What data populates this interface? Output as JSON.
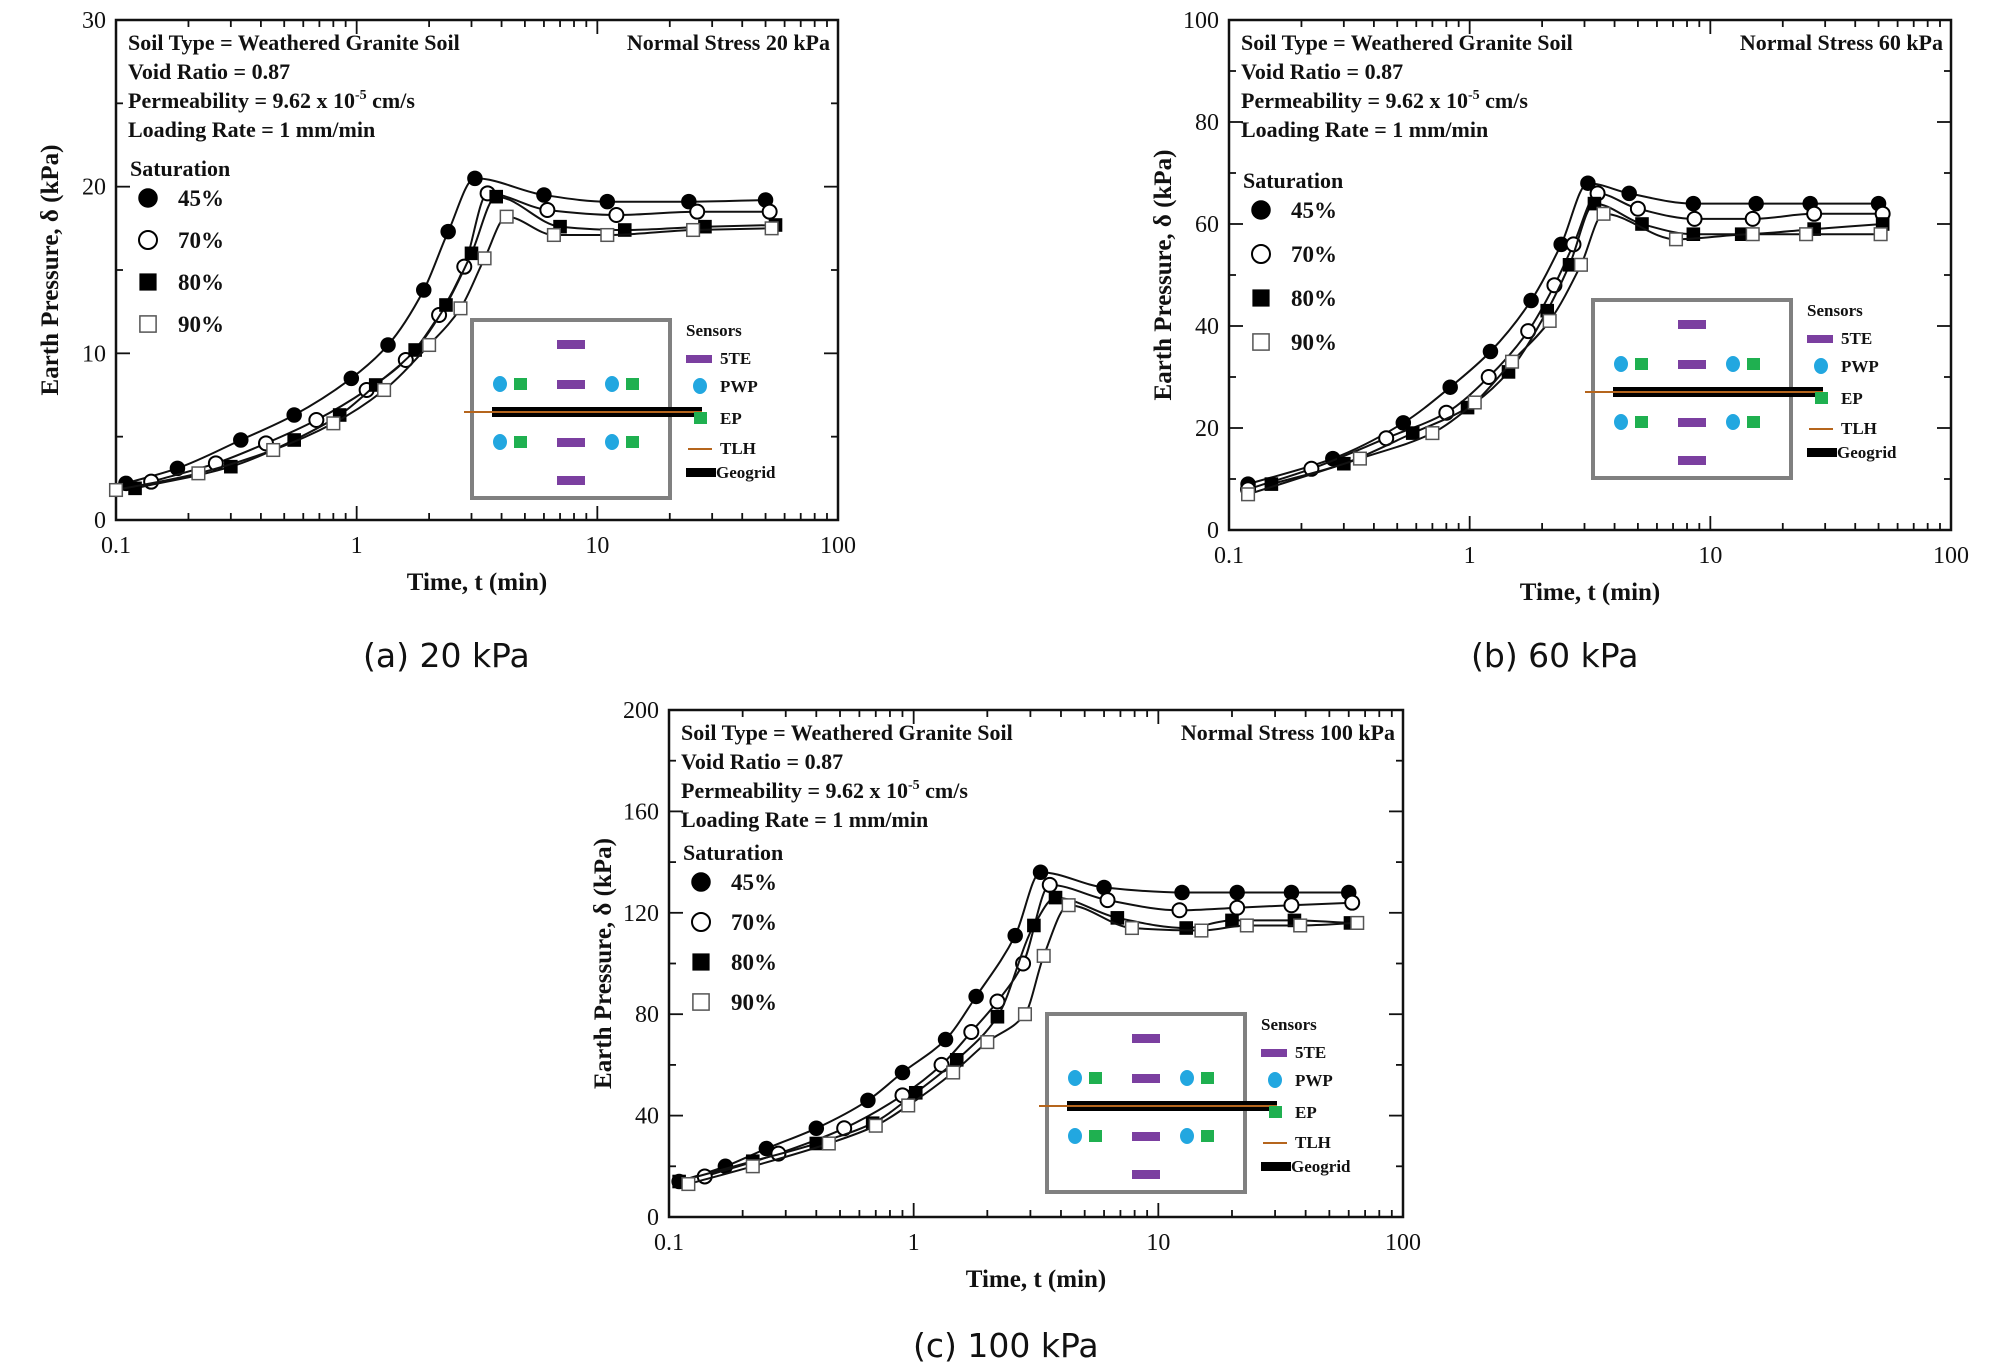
{
  "chart_data": [
    {
      "type": "scatter",
      "panel": "a",
      "caption": "(a) 20 kPa",
      "xlabel": "Time, t (min)",
      "ylabel": "Earth Pressure, δ (kPa)",
      "xscale": "log",
      "xlim": [
        0.1,
        100
      ],
      "ylim": [
        0,
        30
      ],
      "xticks": [
        0.1,
        1,
        10,
        100
      ],
      "xtick_labels": [
        "0.1",
        "1",
        "10",
        "100"
      ],
      "yticks": [
        0,
        10,
        20,
        30
      ],
      "ytick_labels": [
        "0",
        "10",
        "20",
        "30"
      ],
      "info_lines": [
        "Soil Type = Weathered Granite Soil",
        "Void Ratio = 0.87",
        "Permeability = 9.62 x 10",
        "Loading Rate = 1 mm/min"
      ],
      "permeability_exponent": "-5",
      "permeability_unit": " cm/s",
      "stress_label": "Normal Stress 20 kPa",
      "legend_title": "Saturation",
      "series": [
        {
          "name": "45%",
          "marker": "filled-circle",
          "x": [
            0.11,
            0.18,
            0.33,
            0.55,
            0.95,
            1.35,
            1.9,
            2.4,
            3.1,
            6,
            11,
            24,
            50
          ],
          "y": [
            2.2,
            3.1,
            4.8,
            6.3,
            8.5,
            10.5,
            13.8,
            17.3,
            20.5,
            19.5,
            19.1,
            19.1,
            19.2
          ]
        },
        {
          "name": "70%",
          "marker": "open-circle",
          "x": [
            0.14,
            0.26,
            0.42,
            0.68,
            1.1,
            1.6,
            2.2,
            2.8,
            3.5,
            6.2,
            12,
            26,
            52
          ],
          "y": [
            2.3,
            3.4,
            4.6,
            6.0,
            7.8,
            9.6,
            12.3,
            15.2,
            19.6,
            18.6,
            18.3,
            18.5,
            18.5
          ]
        },
        {
          "name": "80%",
          "marker": "filled-square",
          "x": [
            0.12,
            0.3,
            0.55,
            0.85,
            1.2,
            1.75,
            2.35,
            3.0,
            3.8,
            7.0,
            13,
            28,
            55
          ],
          "y": [
            1.9,
            3.2,
            4.8,
            6.3,
            8.1,
            10.2,
            12.9,
            16.0,
            19.4,
            17.6,
            17.4,
            17.6,
            17.7
          ]
        },
        {
          "name": "90%",
          "marker": "open-square",
          "x": [
            0.1,
            0.22,
            0.45,
            0.8,
            1.3,
            2.0,
            2.7,
            3.4,
            4.2,
            6.6,
            11,
            25,
            53
          ],
          "y": [
            1.8,
            2.8,
            4.2,
            5.8,
            7.8,
            10.5,
            12.7,
            15.7,
            18.2,
            17.1,
            17.1,
            17.4,
            17.5
          ]
        }
      ],
      "inset": {
        "title": "Sensors",
        "items": [
          "5TE",
          "PWP",
          "EP",
          "TLH",
          "Geogrid"
        ]
      }
    },
    {
      "type": "scatter",
      "panel": "b",
      "caption": "(b) 60 kPa",
      "xlabel": "Time, t (min)",
      "ylabel": "Earth Pressure, δ (kPa)",
      "xscale": "log",
      "xlim": [
        0.1,
        100
      ],
      "ylim": [
        0,
        100
      ],
      "xticks": [
        0.1,
        1,
        10,
        100
      ],
      "xtick_labels": [
        "0.1",
        "1",
        "10",
        "100"
      ],
      "yticks": [
        0,
        20,
        40,
        60,
        80,
        100
      ],
      "ytick_labels": [
        "0",
        "20",
        "40",
        "60",
        "80",
        "100"
      ],
      "info_lines": [
        "Soil Type = Weathered Granite Soil",
        "Void Ratio = 0.87",
        "Permeability = 9.62 x 10",
        "Loading Rate = 1 mm/min"
      ],
      "permeability_exponent": "-5",
      "permeability_unit": " cm/s",
      "stress_label": "Normal Stress 60 kPa",
      "legend_title": "Saturation",
      "series": [
        {
          "name": "45%",
          "marker": "filled-circle",
          "x": [
            0.12,
            0.27,
            0.53,
            0.83,
            1.22,
            1.8,
            2.4,
            3.1,
            4.6,
            8.5,
            15.5,
            26,
            50
          ],
          "y": [
            9,
            14,
            21,
            28,
            35,
            45,
            56,
            68,
            66,
            64,
            64,
            64,
            64
          ]
        },
        {
          "name": "70%",
          "marker": "open-circle",
          "x": [
            0.12,
            0.22,
            0.45,
            0.8,
            1.2,
            1.75,
            2.25,
            2.7,
            3.4,
            5.0,
            8.6,
            15,
            27,
            52
          ],
          "y": [
            8,
            12,
            18,
            23,
            30,
            39,
            48,
            56,
            66,
            63,
            61,
            61,
            62,
            62
          ]
        },
        {
          "name": "80%",
          "marker": "filled-square",
          "x": [
            0.15,
            0.3,
            0.58,
            0.98,
            1.45,
            2.1,
            2.6,
            3.3,
            5.2,
            8.5,
            13.5,
            27,
            52
          ],
          "y": [
            9,
            13,
            19,
            24,
            31,
            43,
            52,
            64,
            60,
            58,
            58,
            59,
            60
          ]
        },
        {
          "name": "90%",
          "marker": "open-square",
          "x": [
            0.12,
            0.35,
            0.7,
            1.05,
            1.5,
            2.15,
            2.9,
            3.6,
            7.2,
            15,
            25,
            51
          ],
          "y": [
            7,
            14,
            19,
            25,
            33,
            41,
            52,
            62,
            57,
            58,
            58,
            58
          ]
        }
      ],
      "inset": {
        "title": "Sensors",
        "items": [
          "5TE",
          "PWP",
          "EP",
          "TLH",
          "Geogrid"
        ]
      }
    },
    {
      "type": "scatter",
      "panel": "c",
      "caption": "(c) 100 kPa",
      "xlabel": "Time, t (min)",
      "ylabel": "Earth Pressure, δ (kPa)",
      "xscale": "log",
      "xlim": [
        0.1,
        100
      ],
      "ylim": [
        0,
        200
      ],
      "xticks": [
        0.1,
        1,
        10,
        100
      ],
      "xtick_labels": [
        "0.1",
        "1",
        "10",
        "100"
      ],
      "yticks": [
        0,
        40,
        80,
        120,
        160,
        200
      ],
      "ytick_labels": [
        "0",
        "40",
        "80",
        "120",
        "160",
        "200"
      ],
      "info_lines": [
        "Soil Type = Weathered Granite Soil",
        "Void Ratio = 0.87",
        "Permeability = 9.62 x 10",
        "Loading Rate = 1 mm/min"
      ],
      "permeability_exponent": "-5",
      "permeability_unit": " cm/s",
      "stress_label": "Normal Stress 100 kPa",
      "legend_title": "Saturation",
      "series": [
        {
          "name": "45%",
          "marker": "filled-circle",
          "x": [
            0.11,
            0.17,
            0.25,
            0.4,
            0.65,
            0.9,
            1.35,
            1.8,
            2.6,
            3.3,
            6.0,
            12.5,
            21,
            35,
            60
          ],
          "y": [
            14,
            20,
            27,
            35,
            46,
            57,
            70,
            87,
            111,
            136,
            130,
            128,
            128,
            128,
            128
          ]
        },
        {
          "name": "70%",
          "marker": "open-circle",
          "x": [
            0.14,
            0.28,
            0.52,
            0.9,
            1.3,
            1.72,
            2.2,
            2.8,
            3.6,
            6.2,
            12.2,
            21,
            35,
            62
          ],
          "y": [
            16,
            25,
            35,
            48,
            60,
            73,
            85,
            100,
            131,
            125,
            121,
            122,
            123,
            124
          ]
        },
        {
          "name": "80%",
          "marker": "filled-square",
          "x": [
            0.11,
            0.22,
            0.4,
            0.68,
            1.02,
            1.5,
            2.2,
            3.1,
            3.8,
            6.8,
            13,
            20,
            36,
            61
          ],
          "y": [
            14,
            22,
            29,
            37,
            49,
            62,
            79,
            115,
            126,
            118,
            114,
            117,
            117,
            116
          ]
        },
        {
          "name": "90%",
          "marker": "open-square",
          "x": [
            0.12,
            0.22,
            0.45,
            0.7,
            0.95,
            1.45,
            2.0,
            2.85,
            3.4,
            4.3,
            7.8,
            15,
            23,
            38,
            65
          ],
          "y": [
            13,
            20,
            29,
            36,
            44,
            57,
            69,
            80,
            103,
            123,
            114,
            113,
            115,
            115,
            116
          ]
        }
      ],
      "inset": {
        "title": "Sensors",
        "items": [
          "5TE",
          "PWP",
          "EP",
          "TLH",
          "Geogrid"
        ]
      }
    }
  ],
  "colors": {
    "axis": "#111111",
    "inset_border": "#808080",
    "sensor_5te": "#7b3fa0",
    "sensor_pwp": "#22a7e0",
    "sensor_ep": "#1fb050",
    "sensor_tlh": "#b5651d",
    "geogrid": "#000000"
  }
}
